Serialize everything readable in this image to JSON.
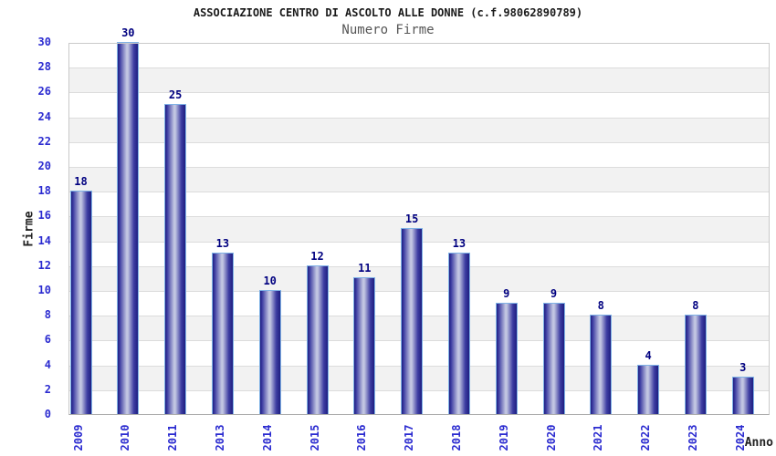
{
  "chart_data": {
    "type": "bar",
    "title": "ASSOCIAZIONE CENTRO DI ASCOLTO ALLE DONNE (c.f.98062890789)",
    "subtitle": "Numero Firme",
    "xlabel": "Anno",
    "ylabel": "Firme",
    "categories": [
      "2009",
      "2010",
      "2011",
      "2013",
      "2014",
      "2015",
      "2016",
      "2017",
      "2018",
      "2019",
      "2020",
      "2021",
      "2022",
      "2023",
      "2024"
    ],
    "values": [
      18,
      30,
      25,
      13,
      10,
      12,
      11,
      15,
      13,
      9,
      9,
      8,
      4,
      8,
      3
    ],
    "ylim": [
      0,
      30
    ],
    "ytick_step": 2,
    "grid": true,
    "legend": "none",
    "bands_alternating": true,
    "colors": {
      "bar_dark": "#1e1e80",
      "bar_mid": "#3d3da2",
      "bar_light": "#c2c6e2",
      "bar_border": "#7fb2e6",
      "tick_label": "#2b2bd0",
      "value_label": "#000080",
      "axis_title": "#222222",
      "title": "#1a1a1a",
      "subtitle": "#555555",
      "band_alt": "#f2f2f2",
      "gridline": "#dcdcdc"
    }
  }
}
